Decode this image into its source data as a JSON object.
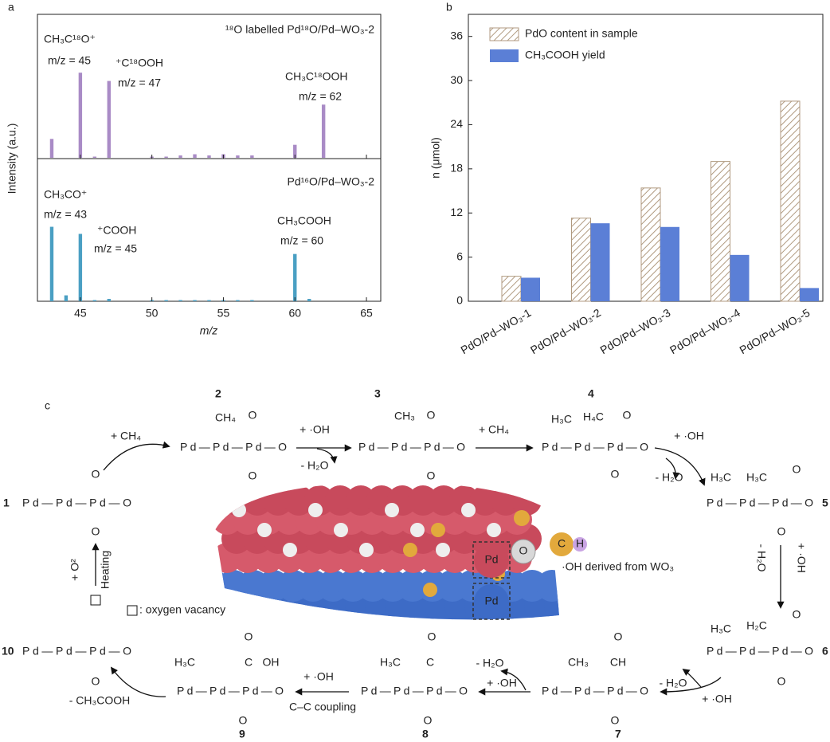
{
  "chart_data": [
    {
      "type": "bar",
      "label": "a",
      "title": "¹⁸O labelled Pd¹⁸O/Pd–WO₃-2",
      "color": "#a98bc6",
      "x": [
        43,
        45,
        46,
        47,
        50,
        51,
        52,
        53,
        54,
        55,
        56,
        57,
        60,
        62
      ],
      "values": [
        16,
        72,
        1,
        65,
        1,
        1,
        2,
        3,
        2,
        3,
        2,
        2,
        11,
        45
      ],
      "xlim": [
        42,
        66
      ],
      "ylim": [
        0,
        120
      ],
      "annotations": [
        "CH₃C¹⁸O⁺",
        "m/z = 45",
        "⁺C¹⁸OOH",
        "m/z = 47",
        "CH₃C¹⁸OOH",
        "m/z = 62"
      ]
    },
    {
      "type": "bar",
      "title": "Pd¹⁶O/Pd–WO₃-2",
      "color": "#4a9fc3",
      "x": [
        43,
        44,
        45,
        46,
        47,
        50,
        51,
        52,
        53,
        54,
        55,
        56,
        57,
        60,
        61
      ],
      "values": [
        63,
        5,
        57,
        1,
        2,
        1,
        1,
        1,
        1,
        1,
        1,
        1,
        1,
        40,
        2
      ],
      "xlim": [
        42,
        66
      ],
      "ylim": [
        0,
        120
      ],
      "xticks": [
        45,
        50,
        55,
        60,
        65
      ],
      "xlabel": "m/z",
      "ylabel": "Intensity (a.u.)",
      "annotations": [
        "CH₃CO⁺",
        "m/z = 43",
        "⁺COOH",
        "m/z = 45",
        "CH₃COOH",
        "m/z = 60"
      ]
    },
    {
      "type": "bar",
      "label": "b",
      "ylabel": "n (μmol)",
      "categories": [
        "PdO/Pd–WO₃-1",
        "PdO/Pd–WO₃-2",
        "PdO/Pd–WO₃-3",
        "PdO/Pd–WO₃-4",
        "PdO/Pd–WO₃-5"
      ],
      "series": [
        {
          "name": "PdO content in sample",
          "color": "#b09a80",
          "pattern": "hatch",
          "values": [
            3.4,
            11.3,
            15.4,
            19.0,
            27.2
          ]
        },
        {
          "name": "CH₃COOH yield",
          "color": "#5b7fd6",
          "values": [
            3.2,
            10.6,
            10.1,
            6.3,
            1.8
          ]
        }
      ],
      "ylim": [
        0,
        39
      ],
      "yticks": [
        0,
        6,
        12,
        18,
        24,
        30,
        36
      ],
      "legend": "upper left"
    }
  ],
  "diagram": {
    "label": "c",
    "structures": [
      {
        "number": "1",
        "texts": [
          "Pd—Pd—Pd—O",
          "O",
          "O"
        ]
      },
      {
        "number": "2",
        "texts": [
          "Pd—Pd—Pd—O",
          "CH₄",
          "O",
          "O"
        ]
      },
      {
        "number": "3",
        "texts": [
          "Pd—Pd—Pd—O",
          "CH₃",
          "O",
          "O"
        ]
      },
      {
        "number": "4",
        "texts": [
          "Pd—Pd—Pd—O",
          "H₃C",
          "H₄C",
          "O",
          "O"
        ]
      },
      {
        "number": "5",
        "texts": [
          "Pd—Pd—Pd—O",
          "H₃C",
          "H₃C",
          "O",
          "O"
        ]
      },
      {
        "number": "6",
        "texts": [
          "Pd—Pd—Pd—O",
          "H₃C",
          "H₂C",
          "O",
          "O"
        ]
      },
      {
        "number": "7",
        "texts": [
          "Pd—Pd—Pd—O",
          "CH₃",
          "CH",
          "O",
          "O"
        ]
      },
      {
        "number": "8",
        "texts": [
          "Pd—Pd—Pd—O",
          "H₃C",
          "C",
          "O",
          "O"
        ]
      },
      {
        "number": "9",
        "texts": [
          "Pd—Pd—Pd—O",
          "H₃C",
          "C",
          "OH",
          "O",
          "O"
        ]
      },
      {
        "number": "10",
        "texts": [
          "Pd—Pd—Pd—O",
          "O"
        ]
      }
    ],
    "labels": [
      "+ CH₄",
      "+ ·OH",
      "- H₂O",
      "+ CH₄",
      "+ ·OH",
      "- H₂O",
      "- H₂O",
      "+ ·OH",
      "- H₂O",
      "+ ·OH",
      "- H₂O",
      "+ ·OH",
      "+ ·OH",
      "C–C coupling",
      "- CH₃COOH",
      "+ O²",
      "Heating",
      ": oxygen vacancy",
      "·OH derived from WO₃"
    ],
    "image_labels": [
      "Pd",
      "Pd",
      "O",
      "C",
      "H"
    ]
  }
}
